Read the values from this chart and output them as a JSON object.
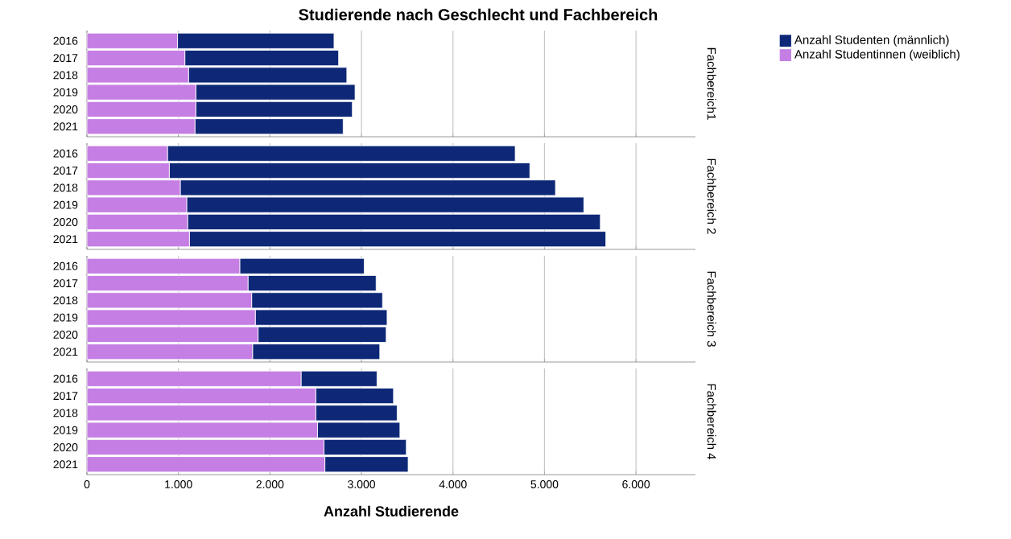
{
  "chart_data": [
    {
      "type": "bar",
      "orientation": "horizontal",
      "stacked": true,
      "title": "Studierende nach Geschlecht und Fachbereich",
      "y2label": "Fachbereich1",
      "categories": [
        "2016",
        "2017",
        "2018",
        "2019",
        "2020",
        "2021"
      ],
      "series": [
        {
          "name": "Anzahl Studentinnen (weiblich)",
          "color": "#c57ee3",
          "values": [
            990,
            1070,
            1110,
            1190,
            1190,
            1180
          ]
        },
        {
          "name": "Anzahl Studenten (männlich)",
          "color": "#0e2877",
          "values": [
            1710,
            1680,
            1730,
            1740,
            1710,
            1620
          ]
        }
      ],
      "xlim": [
        0,
        6650
      ],
      "xticks": [
        0,
        1000,
        2000,
        3000,
        4000,
        5000,
        6000
      ],
      "grid": "x",
      "legend": "right",
      "tick_labels": "y"
    },
    {
      "type": "bar",
      "orientation": "horizontal",
      "stacked": true,
      "y2label": "Fachbereich 2",
      "categories": [
        "2016",
        "2017",
        "2018",
        "2019",
        "2020",
        "2021"
      ],
      "series": [
        {
          "color": "#c57ee3",
          "values": [
            880,
            900,
            1020,
            1090,
            1100,
            1120
          ]
        },
        {
          "color": "#0e2877",
          "values": [
            3800,
            3940,
            4100,
            4340,
            4510,
            4550
          ]
        }
      ],
      "xlim": [
        0,
        6650
      ],
      "xticks": [
        0,
        1000,
        2000,
        3000,
        4000,
        5000,
        6000
      ],
      "grid": "x",
      "tick_labels": "y"
    },
    {
      "type": "bar",
      "orientation": "horizontal",
      "stacked": true,
      "y2label": "Fachbereich 3",
      "categories": [
        "2016",
        "2017",
        "2018",
        "2019",
        "2020",
        "2021"
      ],
      "series": [
        {
          "color": "#c57ee3",
          "values": [
            1670,
            1760,
            1800,
            1840,
            1870,
            1810
          ]
        },
        {
          "color": "#0e2877",
          "values": [
            1360,
            1400,
            1430,
            1440,
            1400,
            1390
          ]
        }
      ],
      "xlim": [
        0,
        6650
      ],
      "xticks": [
        0,
        1000,
        2000,
        3000,
        4000,
        5000,
        6000
      ],
      "grid": "x",
      "tick_labels": "y"
    },
    {
      "type": "bar",
      "orientation": "horizontal",
      "stacked": true,
      "y2label": "Fachbereich 4",
      "xlabel": "Anzahl Studierende",
      "categories": [
        "2016",
        "2017",
        "2018",
        "2019",
        "2020",
        "2021"
      ],
      "series": [
        {
          "color": "#c57ee3",
          "values": [
            2340,
            2500,
            2500,
            2520,
            2590,
            2600
          ]
        },
        {
          "color": "#0e2877",
          "values": [
            830,
            850,
            890,
            900,
            900,
            910
          ]
        }
      ],
      "xlim": [
        0,
        6650
      ],
      "xticks": [
        {
          "value": 0,
          "label": "0"
        },
        {
          "value": 1000,
          "label": "1.000"
        },
        {
          "value": 2000,
          "label": "2.000"
        },
        {
          "value": 3000,
          "label": "3.000"
        },
        {
          "value": 4000,
          "label": "4.000"
        },
        {
          "value": 5000,
          "label": "5.000"
        },
        {
          "value": 6000,
          "label": "6.000"
        }
      ],
      "grid": "x"
    }
  ]
}
